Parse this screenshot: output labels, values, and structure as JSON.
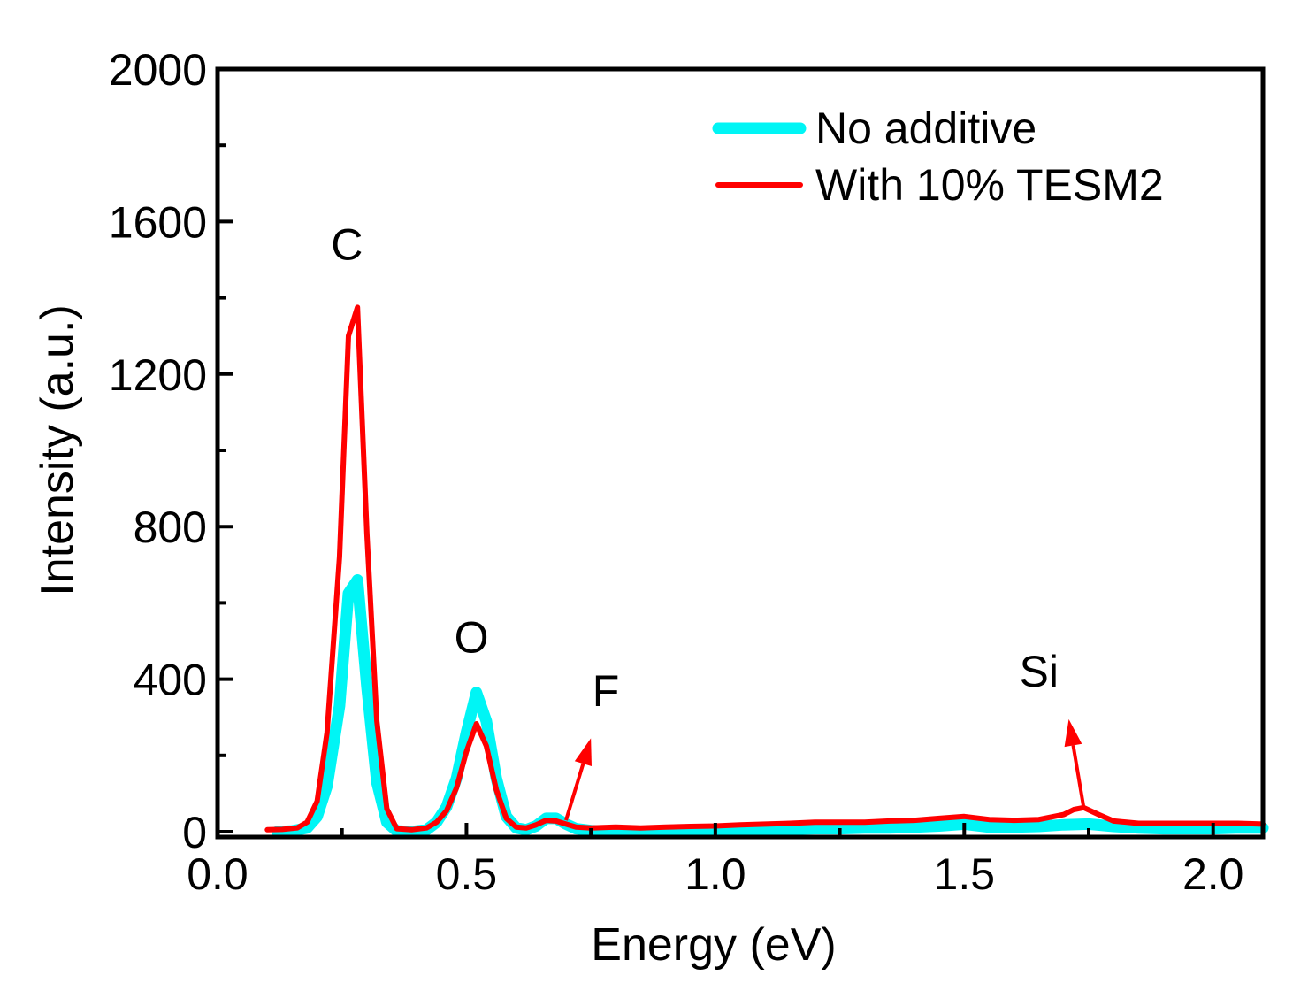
{
  "chart_data": {
    "type": "line",
    "title": "",
    "xlabel": "Energy (eV)",
    "ylabel": "Intensity (a.u.)",
    "xlim": [
      0.0,
      2.1
    ],
    "ylim": [
      0,
      2000
    ],
    "xticks": [
      0.0,
      0.5,
      1.0,
      1.5,
      2.0
    ],
    "xtick_labels": [
      "0.0",
      "0.5",
      "1.0",
      "1.5",
      "2.0"
    ],
    "x_minor_step": 0.25,
    "yticks": [
      0,
      400,
      800,
      1200,
      1600,
      2000
    ],
    "ytick_labels": [
      "0",
      "400",
      "800",
      "1200",
      "1600",
      "2000"
    ],
    "y_minor_step": 200,
    "grid": false,
    "legend": {
      "position": "top-right"
    },
    "series": [
      {
        "name": "No additive",
        "color": "#00f5f5",
        "x": [
          0.12,
          0.15,
          0.18,
          0.2,
          0.22,
          0.245,
          0.263,
          0.281,
          0.3,
          0.32,
          0.34,
          0.36,
          0.39,
          0.42,
          0.44,
          0.46,
          0.48,
          0.5,
          0.52,
          0.54,
          0.56,
          0.58,
          0.6,
          0.62,
          0.64,
          0.66,
          0.68,
          0.7,
          0.72,
          0.75,
          0.8,
          0.85,
          0.9,
          0.95,
          1.0,
          1.05,
          1.1,
          1.15,
          1.2,
          1.25,
          1.3,
          1.35,
          1.4,
          1.45,
          1.5,
          1.55,
          1.6,
          1.65,
          1.7,
          1.75,
          1.8,
          1.85,
          1.9,
          1.95,
          2.0,
          2.05,
          2.1
        ],
        "y": [
          0,
          2,
          10,
          40,
          120,
          330,
          625,
          660,
          380,
          130,
          25,
          2,
          0,
          5,
          25,
          65,
          140,
          260,
          365,
          290,
          140,
          40,
          10,
          5,
          15,
          35,
          35,
          20,
          8,
          3,
          0,
          0,
          2,
          3,
          2,
          3,
          5,
          6,
          8,
          8,
          10,
          10,
          12,
          15,
          20,
          12,
          12,
          14,
          18,
          20,
          14,
          10,
          8,
          8,
          8,
          10,
          10
        ]
      },
      {
        "name": "With 10% TESM2",
        "color": "#ff0000",
        "x": [
          0.1,
          0.13,
          0.16,
          0.18,
          0.2,
          0.22,
          0.245,
          0.263,
          0.281,
          0.3,
          0.32,
          0.34,
          0.36,
          0.39,
          0.42,
          0.44,
          0.46,
          0.48,
          0.5,
          0.52,
          0.54,
          0.56,
          0.58,
          0.6,
          0.62,
          0.64,
          0.66,
          0.68,
          0.7,
          0.72,
          0.75,
          0.8,
          0.85,
          0.9,
          0.95,
          1.0,
          1.05,
          1.1,
          1.15,
          1.2,
          1.25,
          1.3,
          1.35,
          1.4,
          1.45,
          1.5,
          1.55,
          1.6,
          1.65,
          1.7,
          1.72,
          1.74,
          1.77,
          1.8,
          1.85,
          1.9,
          1.95,
          2.0,
          2.05,
          2.1
        ],
        "y": [
          5,
          6,
          10,
          25,
          80,
          260,
          720,
          1300,
          1375,
          780,
          290,
          60,
          8,
          5,
          10,
          25,
          55,
          115,
          210,
          283,
          225,
          110,
          35,
          12,
          10,
          18,
          30,
          28,
          20,
          12,
          10,
          12,
          10,
          12,
          14,
          15,
          18,
          20,
          22,
          25,
          25,
          25,
          28,
          30,
          35,
          40,
          32,
          30,
          32,
          45,
          58,
          63,
          45,
          28,
          22,
          22,
          22,
          22,
          22,
          20
        ]
      }
    ],
    "annotations": [
      {
        "text": "C",
        "x": 0.26,
        "y": 1500
      },
      {
        "text": "O",
        "x": 0.51,
        "y": 470
      },
      {
        "text": "F",
        "x": 0.78,
        "y": 330
      },
      {
        "text": "Si",
        "x": 1.65,
        "y": 380
      }
    ],
    "arrows": [
      {
        "label": "F",
        "from": [
          0.7,
          30
        ],
        "to": [
          0.75,
          245
        ],
        "color": "#ff0000"
      },
      {
        "label": "Si",
        "from": [
          1.74,
          63
        ],
        "to": [
          1.71,
          295
        ],
        "color": "#ff0000"
      }
    ]
  }
}
